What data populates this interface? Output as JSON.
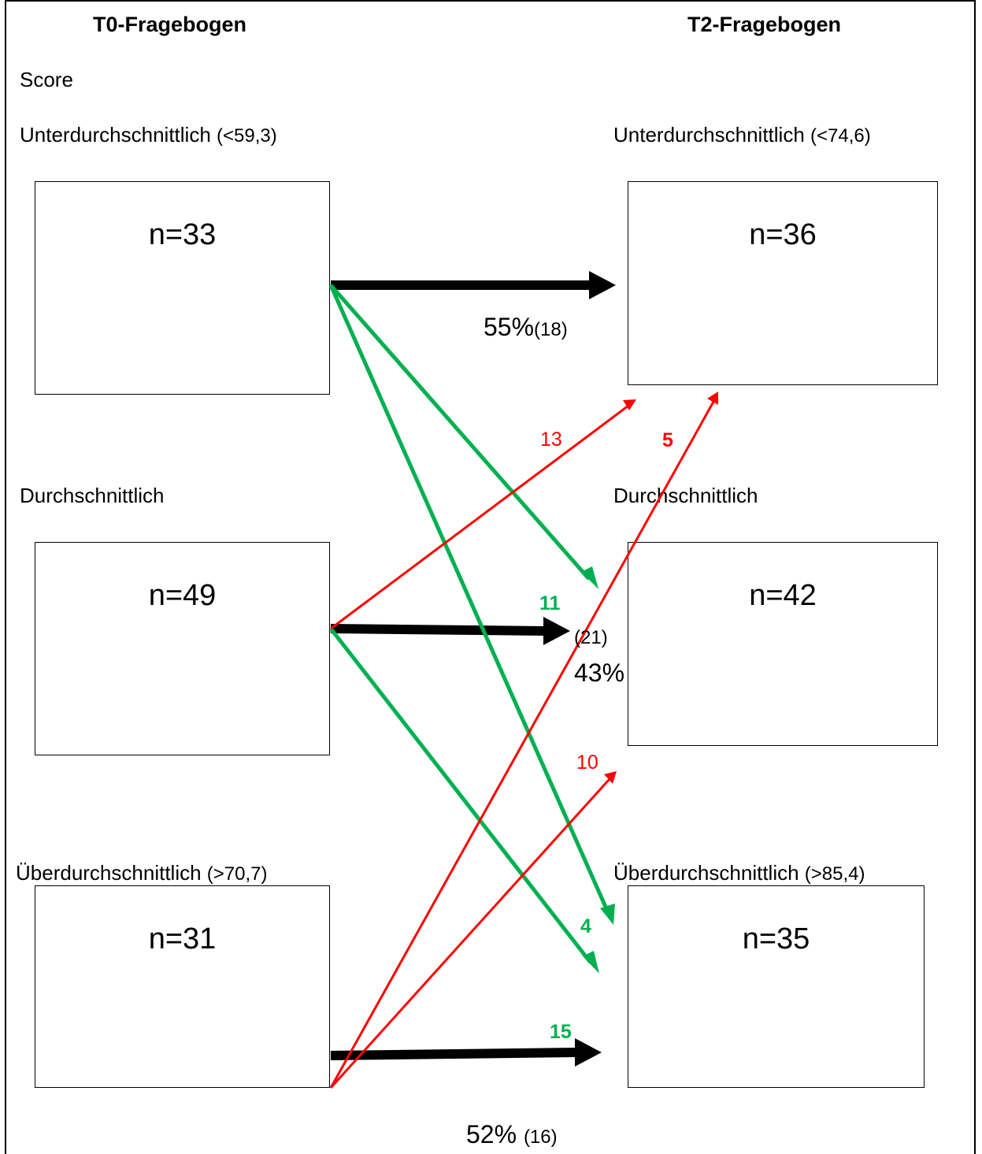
{
  "headers": {
    "left": "T0-Fragebogen",
    "right": "T2-Fragebogen"
  },
  "score_label": "Score",
  "t0": {
    "below": {
      "label": "Unterdurchschnittlich",
      "threshold": "(<59,3)",
      "n": "n=33"
    },
    "average": {
      "label": "Durchschnittlich",
      "n": "n=49"
    },
    "above": {
      "label": "Überdurchschnittlich",
      "threshold": "(>70,7)",
      "n": "n=31"
    }
  },
  "t2": {
    "below": {
      "label": "Unterdurchschnittlich",
      "threshold": "(<74,6)",
      "n": "n=36"
    },
    "average": {
      "label": "Durchschnittlich",
      "n": "n=42"
    },
    "above": {
      "label": "Überdurchschnittlich",
      "threshold": "(>85,4)",
      "n": "n=35"
    }
  },
  "stay": {
    "below": {
      "pct": "55%",
      "count": "(18)"
    },
    "average": {
      "count": "(21)",
      "pct": "43%"
    },
    "above": {
      "pct": "52%",
      "count": "(16)"
    }
  },
  "transitions": {
    "avg_to_below": "13",
    "above_to_below": "5",
    "below_to_avg": "11",
    "above_to_avg": "10",
    "below_to_above": "4",
    "avg_to_above": "15"
  },
  "colors": {
    "stay": "#000000",
    "improve": "#ff0000",
    "worsen": "#00b050"
  }
}
